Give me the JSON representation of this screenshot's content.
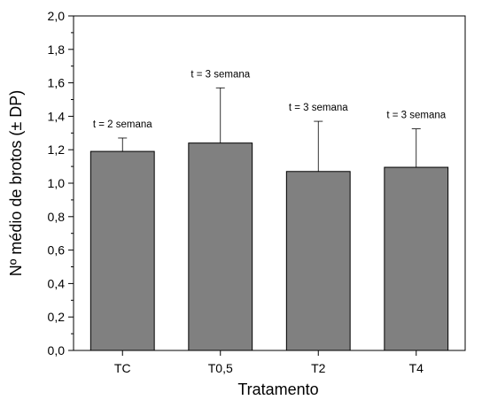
{
  "chart_data": {
    "type": "bar",
    "title": "",
    "xlabel": "Tratamento",
    "ylabel": "Nº médio de brotos (± DP)",
    "categories": [
      "TC",
      "T0,5",
      "T2",
      "T4"
    ],
    "values": [
      1.19,
      1.24,
      1.07,
      1.095
    ],
    "error_plus": [
      0.08,
      0.33,
      0.3,
      0.23
    ],
    "annotations": [
      "t = 2 semana",
      "t = 3 semana",
      "t = 3 semana",
      "t = 3 semana"
    ],
    "ylim": [
      0,
      2.0
    ],
    "yticks": [
      "0,0",
      "0,2",
      "0,4",
      "0,6",
      "0,8",
      "1,0",
      "1,2",
      "1,4",
      "1,6",
      "1,8",
      "2,0"
    ],
    "grid": false,
    "bar_color": "#808080",
    "legend": "none"
  }
}
